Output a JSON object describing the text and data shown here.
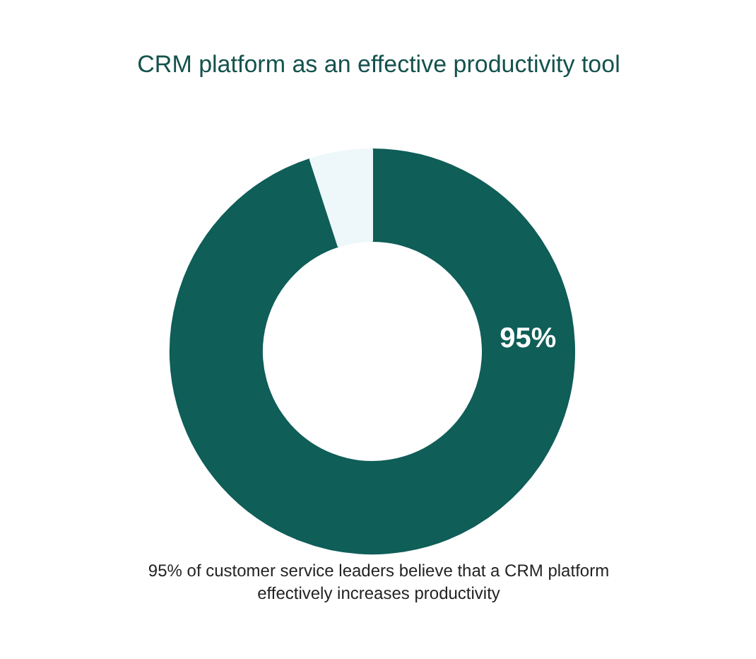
{
  "chart_data": {
    "type": "donut",
    "title": "CRM platform as an effective productivity tool",
    "categories": [
      null,
      null
    ],
    "values": [
      95,
      5
    ],
    "colors": [
      "#0f5e58",
      "#eef7f9"
    ],
    "value_labels": [
      "95%",
      null
    ],
    "annotations": [
      "95% of customer service leaders believe that a CRM platform effectively increases productivity"
    ]
  }
}
